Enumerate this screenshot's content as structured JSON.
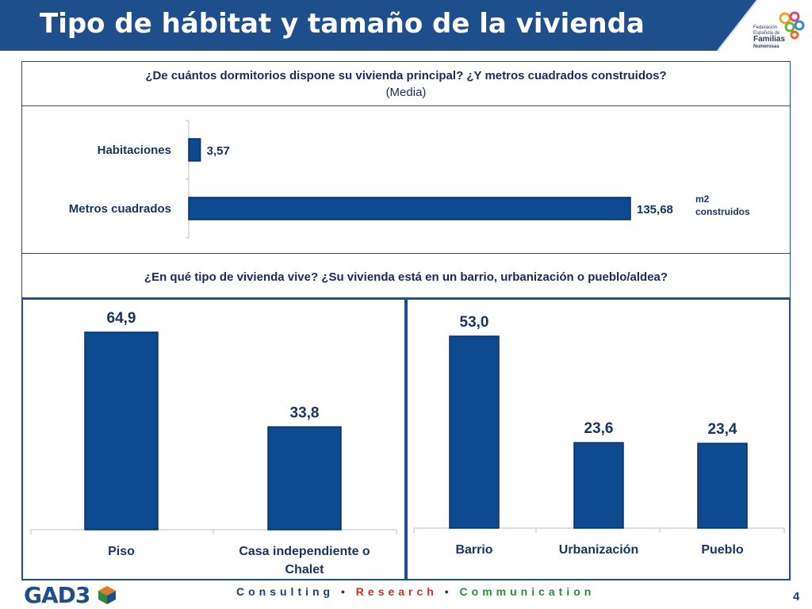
{
  "header": {
    "title": "Tipo de hábitat y tamaño de la vivienda"
  },
  "logo": {
    "line1": "Federación",
    "line2": "Española de",
    "line3": "Familias",
    "line4": "Numerosas"
  },
  "question1": {
    "text": "¿De cuántos dormitorios dispone su vivienda principal? ¿Y metros cuadrados construidos?",
    "subtext": "(Media)"
  },
  "question2": {
    "text": "¿En qué tipo de vivienda vive? ¿Su vivienda está en un barrio, urbanización o pueblo/aldea?"
  },
  "chart_data": [
    {
      "type": "bar",
      "orientation": "horizontal",
      "categories": [
        "Habitaciones",
        "Metros cuadrados"
      ],
      "values": [
        3.57,
        135.68
      ],
      "value_labels": [
        "3,57",
        "135,68"
      ],
      "annotation": "m2 construidos",
      "annotation_lines": [
        "m2",
        "construidos"
      ],
      "xlim": [
        0,
        140
      ]
    },
    {
      "type": "bar",
      "categories": [
        "Piso",
        "Casa independiente o Chalet"
      ],
      "category_lines": [
        [
          "Piso"
        ],
        [
          "Casa independiente o",
          "Chalet"
        ]
      ],
      "values": [
        64.9,
        33.8
      ],
      "value_labels": [
        "64,9",
        "33,8"
      ],
      "ylim": [
        0,
        70
      ]
    },
    {
      "type": "bar",
      "categories": [
        "Barrio",
        "Urbanización",
        "Pueblo"
      ],
      "values": [
        53.0,
        23.6,
        23.4
      ],
      "value_labels": [
        "53,0",
        "23,6",
        "23,4"
      ],
      "ylim": [
        0,
        60
      ]
    }
  ],
  "footer": {
    "brand": "GAD3",
    "tag_consulting": "Consulting",
    "tag_research": "Research",
    "tag_communication": "Communication",
    "separator": "•",
    "page_number": "4"
  },
  "colors": {
    "header": "#1f4e8c",
    "bar": "#0d4a8f",
    "bar_dark": "#06306a",
    "text": "#17335f"
  }
}
